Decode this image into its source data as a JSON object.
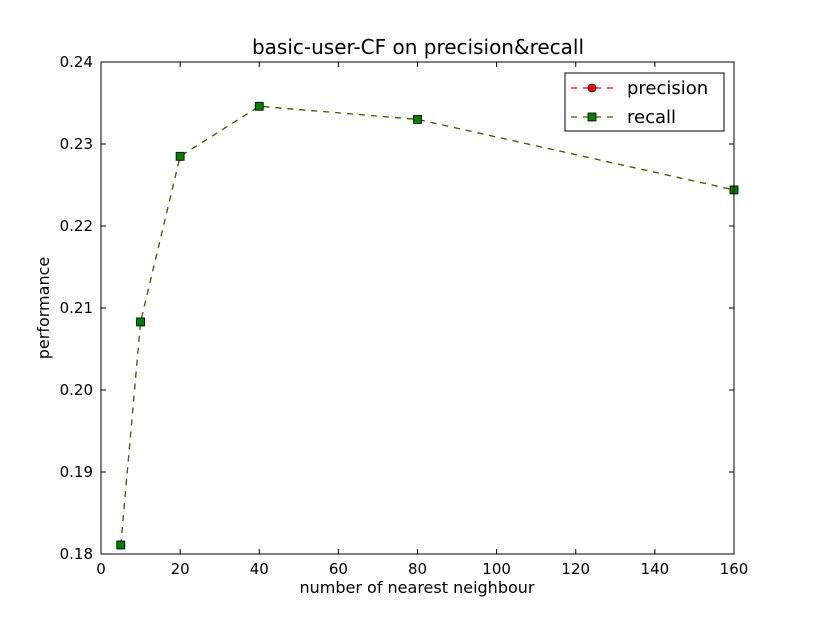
{
  "chart_data": {
    "type": "line",
    "title": "basic-user-CF on precision&recall",
    "xlabel": "number of nearest neighbour",
    "ylabel": "performance",
    "xlim": [
      0,
      160
    ],
    "ylim": [
      0.18,
      0.24
    ],
    "xticks": [
      0,
      20,
      40,
      60,
      80,
      100,
      120,
      140,
      160
    ],
    "xtick_labels": [
      "0",
      "20",
      "40",
      "60",
      "80",
      "100",
      "120",
      "140",
      "160"
    ],
    "yticks": [
      0.18,
      0.19,
      0.2,
      0.21,
      0.22,
      0.23,
      0.24
    ],
    "ytick_labels": [
      "0.18",
      "0.19",
      "0.20",
      "0.21",
      "0.22",
      "0.23",
      "0.24"
    ],
    "grid": false,
    "legend_position": "top-right",
    "series": [
      {
        "name": "precision",
        "color": "#ff0000",
        "marker": "circle",
        "line_style": "dashed",
        "x": [
          5,
          10,
          20,
          40,
          80,
          160
        ],
        "y": [
          0.1811,
          0.2083,
          0.2285,
          0.2346,
          0.233,
          0.2244
        ]
      },
      {
        "name": "recall",
        "color": "#007f00",
        "line_color": "#336600",
        "marker": "square",
        "line_style": "dashed",
        "x": [
          5,
          10,
          20,
          40,
          80,
          160
        ],
        "y": [
          0.1811,
          0.2083,
          0.2285,
          0.2346,
          0.233,
          0.2244
        ]
      }
    ]
  }
}
